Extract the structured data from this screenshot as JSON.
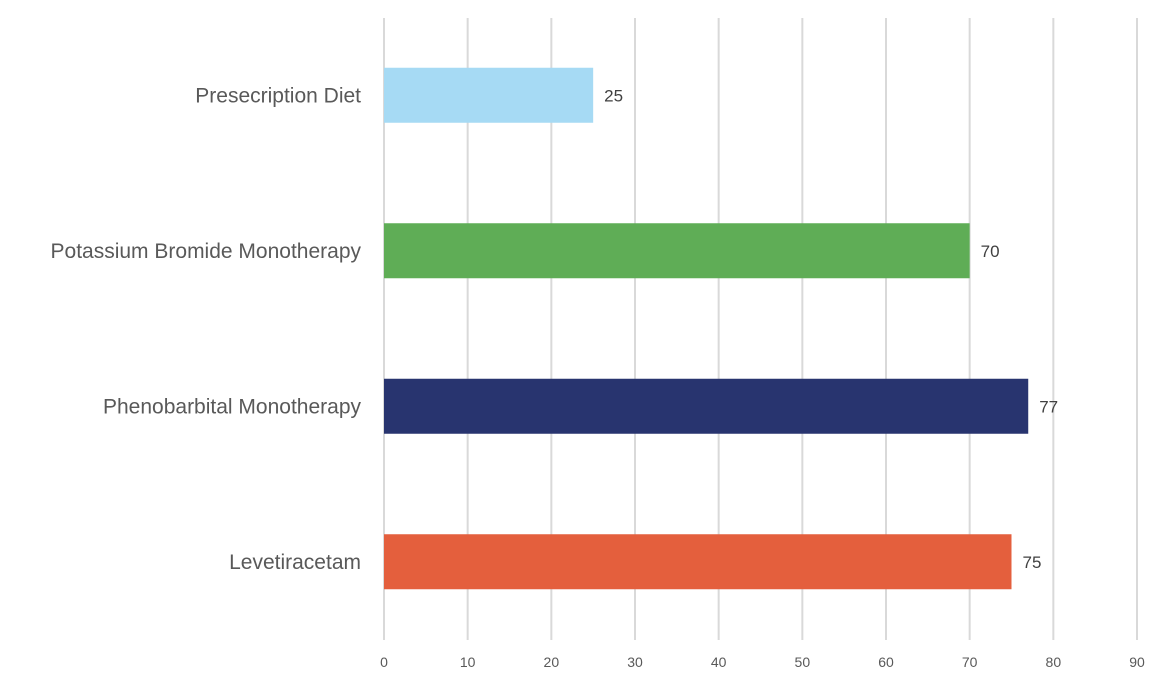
{
  "chart_data": {
    "type": "bar",
    "orientation": "horizontal",
    "title": "",
    "xlabel": "",
    "ylabel": "",
    "categories": [
      "Presecription Diet",
      "Potassium Bromide Monotherapy",
      "Phenobarbital Monotherapy",
      "Levetiracetam"
    ],
    "values": [
      25,
      70,
      77,
      75
    ],
    "colors": [
      "#a6daf4",
      "#5fad56",
      "#28346f",
      "#e45f3d"
    ],
    "xlim": [
      0,
      90
    ],
    "xticks": [
      "0",
      "10",
      "20",
      "30",
      "40",
      "50",
      "60",
      "70",
      "80",
      "90"
    ],
    "grid": true,
    "legend": "none",
    "data_labels": true
  }
}
